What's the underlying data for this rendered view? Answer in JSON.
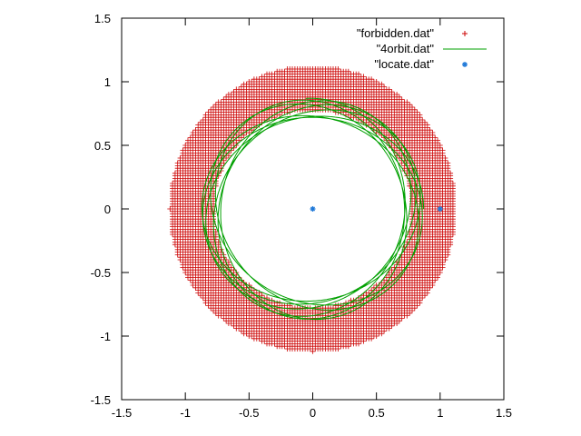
{
  "chart_data": {
    "type": "scatter",
    "title": "",
    "xlabel": "",
    "ylabel": "",
    "xlim": [
      -1.5,
      1.5
    ],
    "ylim": [
      -1.5,
      1.5
    ],
    "grid": false,
    "legend_position": "top-right",
    "x_ticks": [
      "-1.5",
      "-1",
      "-0.5",
      "0",
      "0.5",
      "1",
      "1.5"
    ],
    "y_ticks": [
      "-1.5",
      "-1",
      "-0.5",
      "0",
      "0.5",
      "1",
      "1.5"
    ],
    "series": [
      {
        "name": "\"forbidden.dat\"",
        "style": "points-plus",
        "color": "#cc0000",
        "description_shape": "annulus",
        "inner_radius": 0.78,
        "outer_radius": 1.12,
        "grid_step": 0.02
      },
      {
        "name": "\"4orbit.dat\"",
        "style": "line",
        "color": "#00a000",
        "description_shape": "precessing ellipse",
        "semi_major": 0.87,
        "semi_minor": 0.72,
        "precession_rate": 0.18,
        "t_max_turns": 7
      },
      {
        "name": "\"locate.dat\"",
        "style": "points-star",
        "color": "#1e78d8",
        "points": [
          [
            0,
            0
          ],
          [
            1,
            0
          ]
        ]
      }
    ]
  }
}
